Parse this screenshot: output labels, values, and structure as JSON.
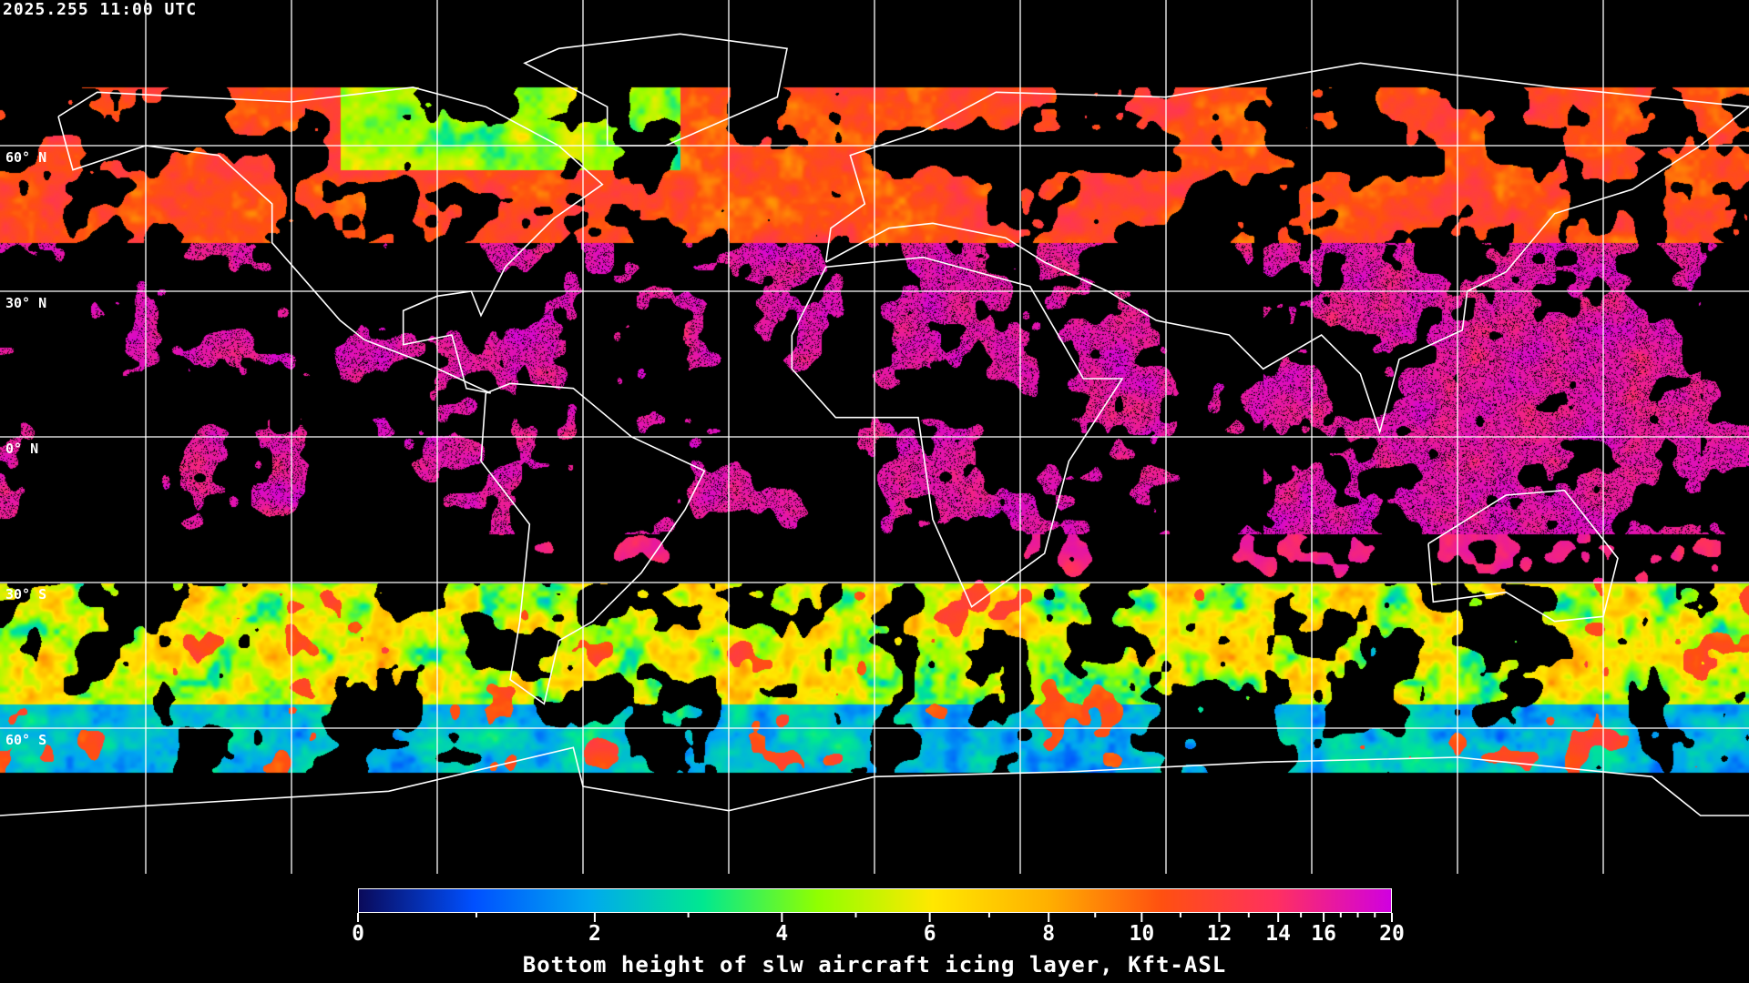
{
  "header": {
    "timestamp": "2025.255 11:00 UTC"
  },
  "map": {
    "projection": "equirectangular",
    "lon_range": [
      -180,
      180
    ],
    "lat_range": [
      -90,
      90
    ],
    "gridline_color": "#ffffff",
    "coastline_color": "#ffffff",
    "lat_labels": [
      {
        "lat": 60,
        "text": "60° N"
      },
      {
        "lat": 30,
        "text": "30° N"
      },
      {
        "lat": 0,
        "text": "0° N"
      },
      {
        "lat": -30,
        "text": "30° S"
      },
      {
        "lat": -60,
        "text": "60° S"
      }
    ]
  },
  "colorbar": {
    "title": "Bottom height of slw aircraft icing layer, Kft-ASL",
    "range": [
      0,
      20
    ],
    "ticks": [
      {
        "value": 0,
        "label": "0"
      },
      {
        "value": 2,
        "label": "2"
      },
      {
        "value": 4,
        "label": "4"
      },
      {
        "value": 6,
        "label": "6"
      },
      {
        "value": 8,
        "label": "8"
      },
      {
        "value": 10,
        "label": "10"
      },
      {
        "value": 12,
        "label": "12"
      },
      {
        "value": 14,
        "label": "14"
      },
      {
        "value": 16,
        "label": "16"
      },
      {
        "value": 20,
        "label": "20"
      }
    ],
    "minor_ticks": [
      1,
      3,
      5,
      7,
      9,
      11,
      13,
      15,
      17,
      18,
      19
    ],
    "colors": [
      "#0a0a5a",
      "#0050ff",
      "#00a8f0",
      "#00e890",
      "#90ff00",
      "#ffe800",
      "#ffb000",
      "#ff5010",
      "#ff3060",
      "#d000e0"
    ]
  }
}
